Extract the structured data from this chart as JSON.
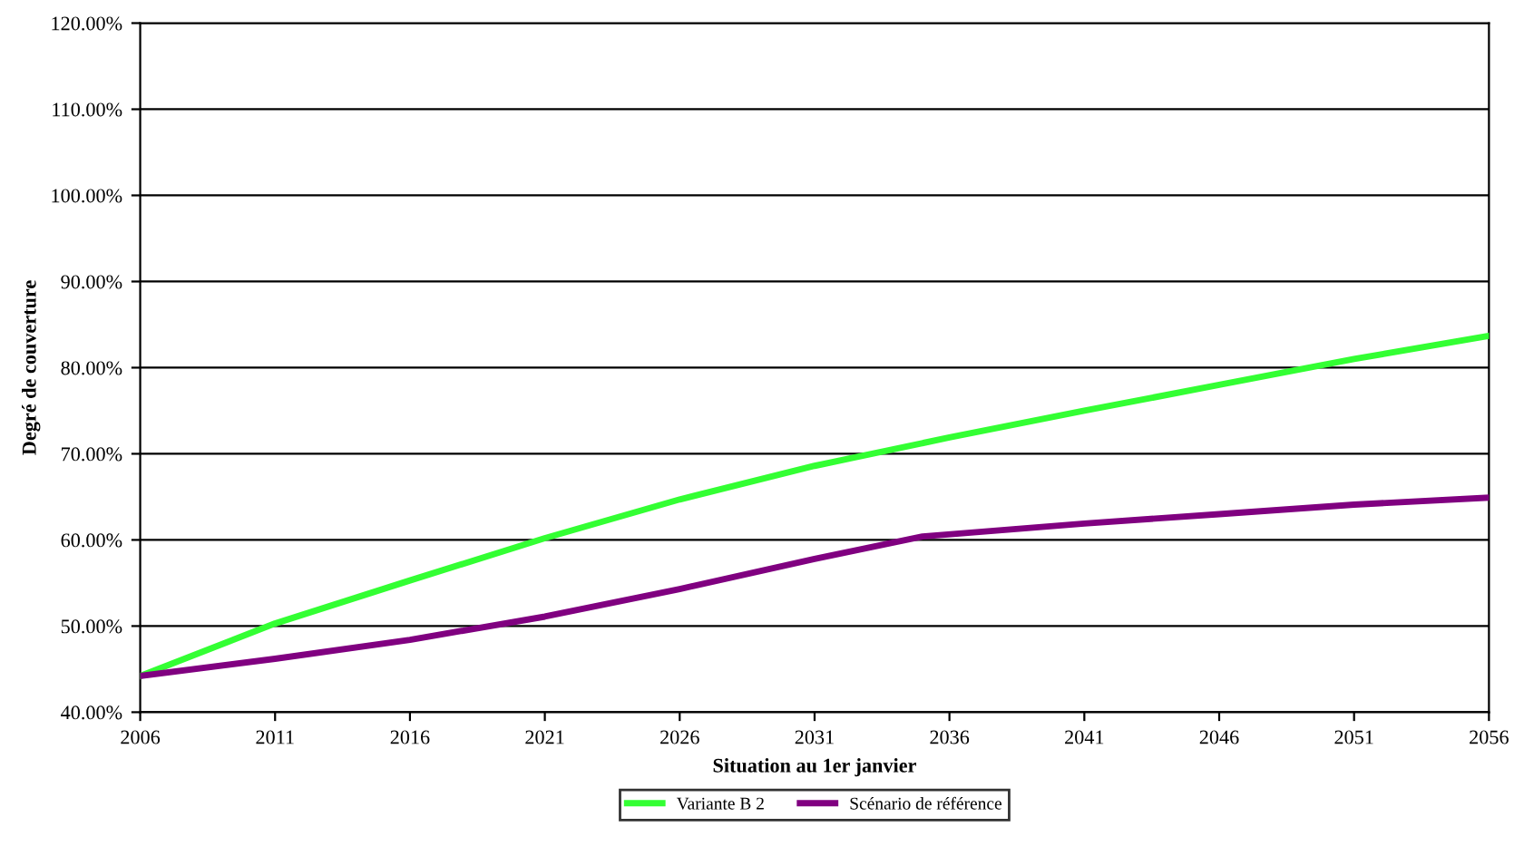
{
  "chart_data": {
    "type": "line",
    "xlabel": "Situation au 1er janvier",
    "ylabel": "Degré de couverture",
    "xlim": [
      2006,
      2056
    ],
    "xticks": [
      2006,
      2011,
      2016,
      2021,
      2026,
      2031,
      2036,
      2041,
      2046,
      2051,
      2056
    ],
    "ylim": [
      40,
      120
    ],
    "yticks": [
      {
        "value": 40,
        "label": "40.00%"
      },
      {
        "value": 50,
        "label": "50.00%"
      },
      {
        "value": 60,
        "label": "60.00%"
      },
      {
        "value": 70,
        "label": "70.00%"
      },
      {
        "value": 80,
        "label": "80.00%"
      },
      {
        "value": 90,
        "label": "90.00%"
      },
      {
        "value": 100,
        "label": "100.00%"
      },
      {
        "value": 110,
        "label": "110.00%"
      },
      {
        "value": 120,
        "label": "120.00%"
      }
    ],
    "grid": "y",
    "legend": "bottom",
    "marker": "none",
    "line_style": "solid",
    "series": [
      {
        "name": "Variante B 2",
        "color": "#33ff33",
        "x": [
          2006,
          2011,
          2016,
          2021,
          2026,
          2031,
          2036,
          2041,
          2046,
          2051,
          2056
        ],
        "values": [
          44.2,
          50.3,
          55.3,
          60.2,
          64.7,
          68.6,
          71.9,
          75.0,
          78.0,
          81.0,
          83.7
        ]
      },
      {
        "name": "Scénario de référence",
        "color": "#800080",
        "x": [
          2006,
          2011,
          2016,
          2021,
          2026,
          2031,
          2035,
          2041,
          2046,
          2051,
          2056
        ],
        "values": [
          44.2,
          46.2,
          48.4,
          51.1,
          54.3,
          57.8,
          60.4,
          61.9,
          63.0,
          64.1,
          64.9
        ]
      }
    ]
  }
}
